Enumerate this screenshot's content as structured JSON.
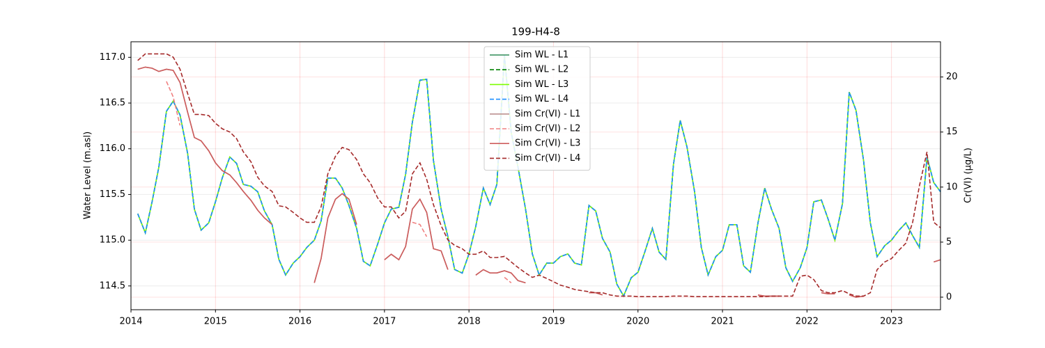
{
  "chart_data": {
    "type": "line",
    "title": "199-H4-8",
    "ylabel": "Water Level (m.asl)",
    "y2label": "Cr(VI) (µg/L)",
    "grid": true,
    "legend": "upper center",
    "xlim": [
      2014,
      2023.58
    ],
    "xticks": [
      2014,
      2015,
      2016,
      2017,
      2018,
      2019,
      2020,
      2021,
      2022,
      2023
    ],
    "ylim": [
      114.24,
      117.17
    ],
    "yticks": [
      114.5,
      {
        "value": 115,
        "label": "115.0"
      },
      115.5,
      {
        "value": 116,
        "label": "116.0"
      },
      116.5,
      {
        "value": 117,
        "label": "117.0"
      }
    ],
    "y2lim": [
      -1.14,
      23.2
    ],
    "y2ticks": [
      0,
      5,
      10,
      15,
      20
    ],
    "x": [
      2014.08,
      2014.17,
      2014.25,
      2014.33,
      2014.42,
      2014.5,
      2014.58,
      2014.67,
      2014.75,
      2014.83,
      2014.92,
      2015,
      2015.08,
      2015.17,
      2015.25,
      2015.33,
      2015.42,
      2015.5,
      2015.58,
      2015.67,
      2015.75,
      2015.83,
      2015.92,
      2016,
      2016.08,
      2016.17,
      2016.25,
      2016.33,
      2016.42,
      2016.5,
      2016.58,
      2016.67,
      2016.75,
      2016.83,
      2016.92,
      2017,
      2017.08,
      2017.17,
      2017.25,
      2017.33,
      2017.42,
      2017.5,
      2017.58,
      2017.67,
      2017.75,
      2017.83,
      2017.92,
      2018,
      2018.08,
      2018.17,
      2018.25,
      2018.33,
      2018.42,
      2018.5,
      2018.58,
      2018.67,
      2018.75,
      2018.83,
      2018.92,
      2019,
      2019.08,
      2019.17,
      2019.25,
      2019.33,
      2019.42,
      2019.5,
      2019.58,
      2019.67,
      2019.75,
      2019.83,
      2019.92,
      2020,
      2020.08,
      2020.17,
      2020.25,
      2020.33,
      2020.42,
      2020.5,
      2020.58,
      2020.67,
      2020.75,
      2020.83,
      2020.92,
      2021,
      2021.08,
      2021.17,
      2021.25,
      2021.33,
      2021.42,
      2021.5,
      2021.58,
      2021.67,
      2021.75,
      2021.83,
      2021.92,
      2022,
      2022.08,
      2022.17,
      2022.25,
      2022.33,
      2022.42,
      2022.5,
      2022.58,
      2022.67,
      2022.75,
      2022.83,
      2022.92,
      2023,
      2023.08,
      2023.17,
      2023.25,
      2023.33,
      2023.42,
      2023.5,
      2023.58
    ],
    "series": [
      {
        "name": "Sim WL - L1",
        "color": "#2e8b57",
        "style": "solid",
        "values": [
          115.29,
          115.08,
          115.42,
          115.8,
          116.41,
          116.52,
          116.37,
          115.95,
          115.34,
          115.11,
          115.19,
          115.42,
          115.68,
          115.91,
          115.84,
          115.61,
          115.59,
          115.53,
          115.32,
          115.17,
          114.79,
          114.62,
          114.75,
          114.82,
          114.92,
          115.0,
          115.21,
          115.68,
          115.68,
          115.57,
          115.38,
          115.13,
          114.77,
          114.72,
          114.96,
          115.19,
          115.34,
          115.36,
          115.72,
          116.29,
          116.75,
          116.76,
          115.87,
          115.34,
          115.04,
          114.68,
          114.64,
          114.85,
          115.15,
          115.57,
          115.39,
          115.61,
          117.02,
          116.18,
          115.8,
          115.34,
          114.85,
          114.62,
          114.75,
          114.75,
          114.82,
          114.85,
          114.75,
          114.73,
          115.38,
          115.32,
          115.02,
          114.87,
          114.52,
          114.39,
          114.59,
          114.65,
          114.87,
          115.13,
          114.87,
          114.79,
          115.83,
          116.31,
          116.02,
          115.53,
          114.92,
          114.62,
          114.82,
          114.89,
          115.17,
          115.17,
          114.72,
          114.65,
          115.19,
          115.57,
          115.34,
          115.13,
          114.7,
          114.55,
          114.7,
          114.92,
          115.42,
          115.44,
          115.23,
          115.0,
          115.4,
          116.62,
          116.42,
          115.87,
          115.19,
          114.82,
          114.94,
          115.0,
          115.1,
          115.19,
          115.05,
          114.92,
          115.91,
          115.63,
          115.53
        ]
      },
      {
        "name": "Sim WL - L2",
        "color": "#008000",
        "style": "dashed",
        "values": [
          115.29,
          115.08,
          115.42,
          115.8,
          116.41,
          116.52,
          116.37,
          115.95,
          115.34,
          115.11,
          115.19,
          115.42,
          115.68,
          115.91,
          115.84,
          115.61,
          115.59,
          115.53,
          115.32,
          115.17,
          114.79,
          114.62,
          114.75,
          114.82,
          114.92,
          115.0,
          115.21,
          115.68,
          115.68,
          115.57,
          115.38,
          115.13,
          114.77,
          114.72,
          114.96,
          115.19,
          115.34,
          115.36,
          115.72,
          116.29,
          116.75,
          116.76,
          115.87,
          115.34,
          115.04,
          114.68,
          114.64,
          114.85,
          115.15,
          115.57,
          115.39,
          115.61,
          117.02,
          116.18,
          115.8,
          115.34,
          114.85,
          114.62,
          114.75,
          114.75,
          114.82,
          114.85,
          114.75,
          114.73,
          115.38,
          115.32,
          115.02,
          114.87,
          114.52,
          114.39,
          114.59,
          114.65,
          114.87,
          115.13,
          114.87,
          114.79,
          115.83,
          116.31,
          116.02,
          115.53,
          114.92,
          114.62,
          114.82,
          114.89,
          115.17,
          115.17,
          114.72,
          114.65,
          115.19,
          115.57,
          115.34,
          115.13,
          114.7,
          114.55,
          114.7,
          114.92,
          115.42,
          115.44,
          115.23,
          115.0,
          115.4,
          116.62,
          116.42,
          115.87,
          115.19,
          114.82,
          114.94,
          115.0,
          115.1,
          115.19,
          115.05,
          114.92,
          115.91,
          115.63,
          115.53
        ]
      },
      {
        "name": "Sim WL - L3",
        "color": "#7cfc00",
        "style": "solid",
        "values": [
          115.29,
          115.08,
          115.42,
          115.8,
          116.41,
          116.52,
          116.37,
          115.95,
          115.34,
          115.11,
          115.19,
          115.42,
          115.68,
          115.91,
          115.84,
          115.61,
          115.59,
          115.53,
          115.32,
          115.17,
          114.79,
          114.62,
          114.75,
          114.82,
          114.92,
          115.0,
          115.21,
          115.68,
          115.68,
          115.57,
          115.38,
          115.13,
          114.77,
          114.72,
          114.96,
          115.19,
          115.34,
          115.36,
          115.72,
          116.29,
          116.75,
          116.76,
          115.87,
          115.34,
          115.04,
          114.68,
          114.64,
          114.85,
          115.15,
          115.57,
          115.39,
          115.61,
          117.02,
          116.18,
          115.8,
          115.34,
          114.85,
          114.62,
          114.75,
          114.75,
          114.82,
          114.85,
          114.75,
          114.73,
          115.38,
          115.32,
          115.02,
          114.87,
          114.52,
          114.39,
          114.59,
          114.65,
          114.87,
          115.13,
          114.87,
          114.79,
          115.83,
          116.31,
          116.02,
          115.53,
          114.92,
          114.62,
          114.82,
          114.89,
          115.17,
          115.17,
          114.72,
          114.65,
          115.19,
          115.57,
          115.34,
          115.13,
          114.7,
          114.55,
          114.7,
          114.92,
          115.42,
          115.44,
          115.23,
          115.0,
          115.4,
          116.62,
          116.42,
          115.87,
          115.19,
          114.82,
          114.94,
          115.0,
          115.1,
          115.19,
          115.05,
          114.92,
          115.91,
          115.63,
          115.53
        ]
      },
      {
        "name": "Sim WL - L4",
        "color": "#1e90ff",
        "style": "dashed",
        "values": [
          115.29,
          115.08,
          115.42,
          115.8,
          116.41,
          116.52,
          116.37,
          115.95,
          115.34,
          115.11,
          115.19,
          115.42,
          115.68,
          115.91,
          115.84,
          115.61,
          115.59,
          115.53,
          115.32,
          115.17,
          114.79,
          114.62,
          114.75,
          114.82,
          114.92,
          115.0,
          115.21,
          115.68,
          115.68,
          115.57,
          115.38,
          115.13,
          114.77,
          114.72,
          114.96,
          115.19,
          115.34,
          115.36,
          115.72,
          116.29,
          116.75,
          116.76,
          115.87,
          115.34,
          115.04,
          114.68,
          114.64,
          114.85,
          115.15,
          115.57,
          115.39,
          115.61,
          117.02,
          116.18,
          115.8,
          115.34,
          114.85,
          114.62,
          114.75,
          114.75,
          114.82,
          114.85,
          114.75,
          114.73,
          115.38,
          115.32,
          115.02,
          114.87,
          114.52,
          114.39,
          114.59,
          114.65,
          114.87,
          115.13,
          114.87,
          114.79,
          115.83,
          116.31,
          116.02,
          115.53,
          114.92,
          114.62,
          114.82,
          114.89,
          115.17,
          115.17,
          114.72,
          114.65,
          115.19,
          115.57,
          115.34,
          115.13,
          114.7,
          114.55,
          114.7,
          114.92,
          115.42,
          115.44,
          115.23,
          115.0,
          115.4,
          116.62,
          116.42,
          115.87,
          115.19,
          114.82,
          114.94,
          115.0,
          115.1,
          115.19,
          115.05,
          114.92,
          115.91,
          115.63,
          115.53
        ]
      },
      {
        "name": "Sim Cr(VI) - L1",
        "color": "#bc8f8f",
        "style": "solid",
        "axis": "y2",
        "values": [
          20.7,
          20.9,
          20.8,
          20.5,
          20.7,
          20.6,
          19.5,
          16.8,
          14.5,
          14.2,
          13.3,
          12.2,
          11.5,
          11.1,
          10.4,
          9.6,
          8.8,
          7.9,
          7.2,
          6.6,
          null,
          null,
          null,
          null,
          null,
          1.3,
          3.5,
          7.2,
          8.9,
          9.4,
          8.9,
          6.6,
          null,
          null,
          null,
          3.4,
          3.9,
          3.4,
          4.6,
          8.0,
          8.9,
          7.7,
          4.4,
          4.2,
          2.5,
          null,
          null,
          null,
          2.0,
          2.5,
          2.2,
          2.2,
          2.4,
          2.2,
          1.5,
          1.3,
          null,
          null,
          null,
          null,
          null,
          null,
          null,
          null,
          0.4,
          0.4,
          0.2,
          null,
          null,
          null,
          null,
          null,
          null,
          null,
          null,
          null,
          null,
          null,
          null,
          null,
          null,
          null,
          null,
          null,
          null,
          null,
          null,
          null,
          0.2,
          0.1,
          0.1,
          0.1,
          null,
          null,
          null,
          null,
          null,
          0.4,
          0.3,
          0.3,
          null,
          0.2,
          0.0,
          0.1,
          null,
          null,
          null,
          null,
          null,
          null,
          null,
          null,
          null,
          3.2,
          3.4
        ]
      },
      {
        "name": "Sim Cr(VI) - L2",
        "color": "#f08080",
        "style": "dashed",
        "axis": "y2",
        "values": [
          null,
          null,
          null,
          null,
          19.6,
          18.2,
          15.6,
          null,
          null,
          null,
          null,
          null,
          null,
          null,
          null,
          null,
          null,
          null,
          null,
          null,
          null,
          null,
          null,
          null,
          null,
          null,
          null,
          null,
          null,
          null,
          null,
          null,
          null,
          null,
          null,
          null,
          null,
          null,
          null,
          6.8,
          6.6,
          5.5,
          null,
          null,
          null,
          null,
          null,
          null,
          null,
          null,
          null,
          null,
          1.8,
          1.3,
          null,
          null,
          null,
          null,
          null,
          null,
          null,
          null,
          null,
          null,
          null,
          null,
          null,
          null,
          null,
          null,
          null,
          null,
          null,
          null,
          null,
          null,
          null,
          null,
          null,
          null,
          null,
          null,
          null,
          null,
          null,
          null,
          null,
          null,
          null,
          null,
          null,
          null,
          null,
          null,
          null,
          null,
          null,
          null,
          null,
          null,
          null,
          null,
          null,
          null,
          null,
          null,
          null,
          null,
          null,
          null,
          null,
          null,
          null,
          null,
          null
        ]
      },
      {
        "name": "Sim Cr(VI) - L3",
        "color": "#cd5c5c",
        "style": "solid",
        "axis": "y2",
        "values": [
          20.7,
          20.9,
          20.8,
          20.5,
          20.7,
          20.6,
          19.5,
          16.8,
          14.5,
          14.2,
          13.3,
          12.2,
          11.5,
          11.1,
          10.4,
          9.6,
          8.8,
          7.9,
          7.2,
          6.6,
          null,
          null,
          null,
          null,
          null,
          1.3,
          3.5,
          7.2,
          8.9,
          9.4,
          8.9,
          6.6,
          null,
          null,
          null,
          3.4,
          3.9,
          3.4,
          4.6,
          8.0,
          8.9,
          7.7,
          4.4,
          4.2,
          2.5,
          null,
          null,
          null,
          2.0,
          2.5,
          2.2,
          2.2,
          2.4,
          2.2,
          1.5,
          1.3,
          null,
          null,
          null,
          null,
          null,
          null,
          null,
          null,
          0.4,
          0.4,
          0.2,
          null,
          null,
          null,
          null,
          null,
          null,
          null,
          null,
          null,
          null,
          null,
          null,
          null,
          null,
          null,
          null,
          null,
          null,
          null,
          null,
          null,
          0.2,
          0.1,
          0.1,
          0.1,
          null,
          null,
          null,
          null,
          null,
          0.4,
          0.3,
          0.3,
          null,
          0.2,
          0.0,
          0.1,
          null,
          null,
          null,
          null,
          null,
          null,
          null,
          null,
          null,
          3.2,
          3.4
        ]
      },
      {
        "name": "Sim Cr(VI) - L4",
        "color": "#a52a2a",
        "style": "dashed",
        "axis": "y2",
        "values": [
          21.5,
          22.1,
          22.1,
          22.1,
          22.1,
          21.8,
          20.7,
          18.5,
          16.6,
          16.6,
          16.5,
          15.8,
          15.3,
          15.0,
          14.4,
          13.2,
          12.3,
          10.9,
          10.1,
          9.6,
          8.3,
          8.2,
          7.7,
          7.2,
          6.8,
          6.8,
          8.2,
          11.2,
          12.8,
          13.6,
          13.4,
          12.5,
          11.2,
          10.4,
          9.0,
          8.2,
          8.2,
          7.2,
          7.8,
          11.2,
          12.2,
          10.7,
          8.4,
          6.5,
          5.2,
          4.7,
          4.4,
          3.9,
          3.9,
          4.2,
          3.6,
          3.6,
          3.7,
          3.2,
          2.7,
          2.2,
          1.8,
          2.0,
          1.7,
          1.4,
          1.1,
          0.9,
          0.7,
          0.6,
          0.5,
          0.4,
          0.4,
          0.2,
          0.1,
          0.1,
          0.1,
          0.05,
          0.05,
          0.05,
          0.05,
          0.05,
          0.1,
          0.1,
          0.1,
          0.05,
          0.05,
          0.05,
          0.05,
          0.05,
          0.05,
          0.05,
          0.05,
          0.05,
          0.05,
          0.05,
          0.1,
          0.1,
          0.1,
          0.1,
          1.9,
          2.0,
          1.6,
          0.6,
          0.4,
          0.4,
          0.6,
          0.3,
          0.1,
          0.1,
          0.4,
          2.5,
          3.2,
          3.5,
          4.2,
          4.9,
          6.8,
          10.1,
          13.2,
          6.8,
          6.3
        ]
      }
    ]
  }
}
